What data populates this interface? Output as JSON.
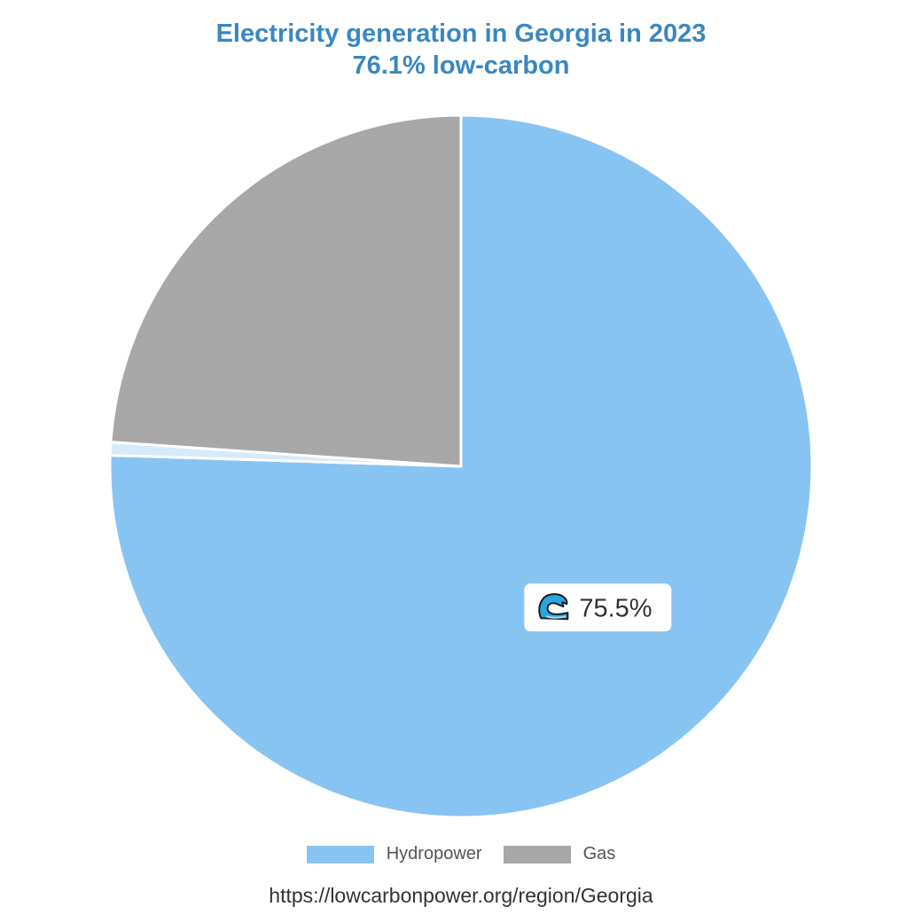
{
  "chart_data": {
    "type": "pie",
    "title": "Electricity generation in Georgia in 2023",
    "subtitle": "76.1% low-carbon",
    "slices": [
      {
        "name": "Hydropower",
        "value": 75.5,
        "color": "#88c4f2",
        "label": "75.5%",
        "icon": "water-wave-icon"
      },
      {
        "name": "",
        "value": 0.6,
        "color": "#d6eafb"
      },
      {
        "name": "Gas",
        "value": 23.9,
        "color": "#a8a8a8"
      }
    ],
    "start": "12 o'clock",
    "direction": "clockwise"
  },
  "legend": {
    "items": [
      {
        "label": "Hydropower",
        "color": "#88c4f2"
      },
      {
        "label": "Gas",
        "color": "#a8a8a8"
      }
    ]
  },
  "source": "https://lowcarbonpower.org/region/Georgia"
}
